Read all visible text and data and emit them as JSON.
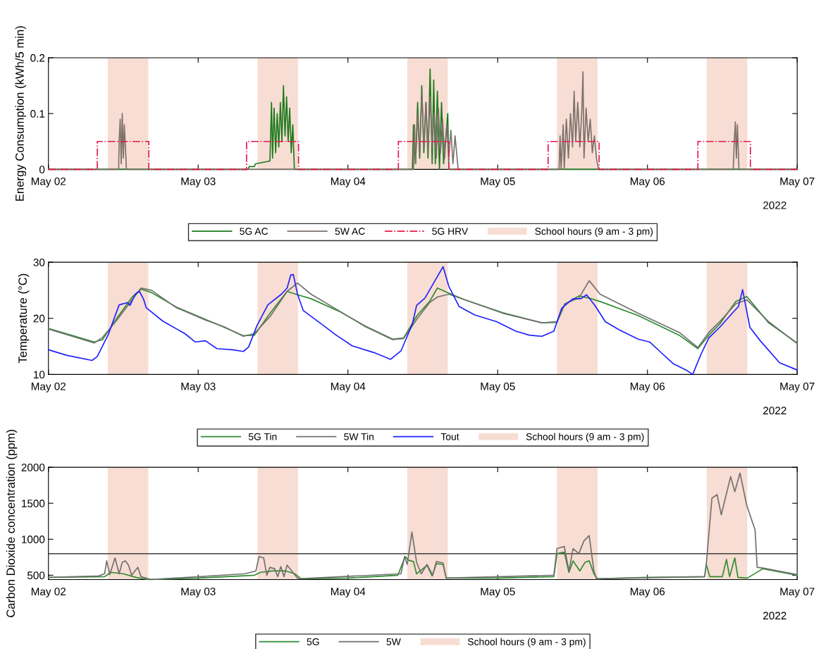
{
  "chart_data": [
    {
      "type": "line",
      "ylabel": "Energy Consumption (kWh/5 min)",
      "annotations": [
        "2022"
      ],
      "legend": "bottom",
      "xlim": [
        "2022-05-02",
        "2022-05-07"
      ],
      "xticks": [
        {
          "value": "2022-05-02",
          "label": "May 02"
        },
        {
          "value": "2022-05-03",
          "label": "May 03"
        },
        {
          "value": "2022-05-04",
          "label": "May 04"
        },
        {
          "value": "2022-05-05",
          "label": "May 05"
        },
        {
          "value": "2022-05-06",
          "label": "May 06"
        },
        {
          "value": "2022-05-07",
          "label": "May 07"
        }
      ],
      "ylim": [
        0,
        0.2
      ],
      "yticks": [
        0,
        0.1,
        0.2
      ],
      "series": [
        {
          "name": "5G AC",
          "color": "#1e7a1e",
          "x": [
            "2022-05-02T00:00",
            "2022-05-03T08:00",
            "2022-05-03T08:10",
            "2022-05-03T09:00",
            "2022-05-03T09:10",
            "2022-05-03T11:30",
            "2022-05-03T11:45",
            "2022-05-03T11:55",
            "2022-05-03T12:10",
            "2022-05-03T12:25",
            "2022-05-03T12:40",
            "2022-05-03T12:55",
            "2022-05-03T13:10",
            "2022-05-03T13:25",
            "2022-05-03T13:40",
            "2022-05-03T13:55",
            "2022-05-03T14:10",
            "2022-05-03T14:25",
            "2022-05-03T14:40",
            "2022-05-03T14:55",
            "2022-05-03T15:10",
            "2022-05-03T15:25",
            "2022-05-04T10:20",
            "2022-05-04T10:30",
            "2022-05-04T10:50",
            "2022-05-04T11:10",
            "2022-05-04T11:30",
            "2022-05-04T11:50",
            "2022-05-04T12:10",
            "2022-05-04T12:30",
            "2022-05-04T12:50",
            "2022-05-04T13:10",
            "2022-05-04T13:30",
            "2022-05-04T13:45",
            "2022-05-04T14:00",
            "2022-05-04T14:20",
            "2022-05-04T14:40",
            "2022-05-04T15:00",
            "2022-05-04T15:20",
            "2022-05-04T16:00",
            "2022-05-04T16:10",
            "2022-05-07T00:00"
          ],
          "values": [
            0,
            0,
            0.005,
            0.005,
            0.01,
            0.015,
            0.12,
            0.02,
            0.11,
            0.03,
            0.1,
            0.04,
            0.12,
            0.05,
            0.15,
            0.06,
            0.13,
            0.05,
            0.11,
            0.03,
            0.08,
            0,
            0,
            0.08,
            0.01,
            0.12,
            0.02,
            0.15,
            0.03,
            0.12,
            0.02,
            0.18,
            0.01,
            0.16,
            0.01,
            0.14,
            0,
            0.12,
            0.01,
            0.1,
            0,
            0
          ]
        },
        {
          "name": "5W AC",
          "color": "#7d716b",
          "x": [
            "2022-05-02T00:00",
            "2022-05-02T11:15",
            "2022-05-02T11:20",
            "2022-05-02T11:30",
            "2022-05-02T11:40",
            "2022-05-02T11:50",
            "2022-05-02T12:00",
            "2022-05-02T12:10",
            "2022-05-02T12:30",
            "2022-05-04T10:30",
            "2022-05-04T10:40",
            "2022-05-04T10:50",
            "2022-05-04T11:10",
            "2022-05-04T11:30",
            "2022-05-04T11:50",
            "2022-05-04T12:10",
            "2022-05-04T12:30",
            "2022-05-04T12:50",
            "2022-05-04T13:10",
            "2022-05-04T13:30",
            "2022-05-04T13:50",
            "2022-05-04T14:10",
            "2022-05-04T14:30",
            "2022-05-04T14:50",
            "2022-05-04T15:10",
            "2022-05-04T15:30",
            "2022-05-04T15:50",
            "2022-05-04T16:10",
            "2022-05-04T16:30",
            "2022-05-04T16:50",
            "2022-05-04T17:10",
            "2022-05-04T17:40",
            "2022-05-05T09:50",
            "2022-05-05T10:00",
            "2022-05-05T10:10",
            "2022-05-05T10:30",
            "2022-05-05T10:40",
            "2022-05-05T11:00",
            "2022-05-05T11:20",
            "2022-05-05T11:40",
            "2022-05-05T12:00",
            "2022-05-05T12:15",
            "2022-05-05T12:30",
            "2022-05-05T12:50",
            "2022-05-05T13:10",
            "2022-05-05T13:30",
            "2022-05-05T13:40",
            "2022-05-05T13:50",
            "2022-05-05T14:10",
            "2022-05-05T14:30",
            "2022-05-05T14:50",
            "2022-05-05T15:10",
            "2022-05-05T15:30",
            "2022-05-05T15:50",
            "2022-05-05T16:10",
            "2022-05-06T13:45",
            "2022-05-06T13:55",
            "2022-05-06T14:05",
            "2022-05-06T14:15",
            "2022-05-06T14:25",
            "2022-05-06T14:40",
            "2022-05-07T00:00"
          ],
          "values": [
            0,
            0,
            0.05,
            0.09,
            0.01,
            0.1,
            0.02,
            0.08,
            0,
            0,
            0.08,
            0.01,
            0.1,
            0.03,
            0.14,
            0.04,
            0.12,
            0.03,
            0.13,
            0.04,
            0.1,
            0.02,
            0.11,
            0.03,
            0.09,
            0.02,
            0.08,
            0.02,
            0.07,
            0.01,
            0.06,
            0,
            0,
            0.06,
            0,
            0.08,
            0,
            0.09,
            0.02,
            0.1,
            0.04,
            0.14,
            0.05,
            0.12,
            0.04,
            0.11,
            0.175,
            0.02,
            0.11,
            0.05,
            0.09,
            0.03,
            0.06,
            0.02,
            0,
            0,
            0.05,
            0.085,
            0.02,
            0.08,
            0,
            0
          ]
        },
        {
          "name": "5G HRV",
          "color": "#e8174a",
          "type": "step",
          "line_style": "dashdot",
          "x": [
            "2022-05-02T00:00",
            "2022-05-02T07:50",
            "2022-05-02T16:05",
            "2022-05-03T07:45",
            "2022-05-03T16:05",
            "2022-05-04T08:05",
            "2022-05-04T16:10",
            "2022-05-05T08:05",
            "2022-05-05T16:15",
            "2022-05-06T08:05",
            "2022-05-06T16:30",
            "2022-05-07T00:00"
          ],
          "values": [
            0,
            0.05,
            0,
            0.05,
            0,
            0.05,
            0,
            0.05,
            0,
            0.05,
            0,
            0
          ]
        }
      ],
      "bands": [
        {
          "axis": "x",
          "from": "2022-05-02T09:30",
          "to": "2022-05-02T16:00",
          "label": "School hours (9 am - 3 pm)",
          "color": "#f7ddd3"
        },
        {
          "axis": "x",
          "from": "2022-05-03T09:30",
          "to": "2022-05-03T16:00",
          "color": "#f7ddd3"
        },
        {
          "axis": "x",
          "from": "2022-05-04T09:30",
          "to": "2022-05-04T16:00",
          "color": "#f7ddd3"
        },
        {
          "axis": "x",
          "from": "2022-05-05T09:30",
          "to": "2022-05-05T16:00",
          "color": "#f7ddd3"
        },
        {
          "axis": "x",
          "from": "2022-05-06T09:30",
          "to": "2022-05-06T16:00",
          "color": "#f7ddd3"
        }
      ]
    },
    {
      "type": "line",
      "ylabel": "Temperature (°C)",
      "annotations": [
        "2022"
      ],
      "legend": "bottom",
      "xlim": [
        "2022-05-02",
        "2022-05-07"
      ],
      "xticks": [
        {
          "value": "2022-05-02",
          "label": "May 02"
        },
        {
          "value": "2022-05-03",
          "label": "May 03"
        },
        {
          "value": "2022-05-04",
          "label": "May 04"
        },
        {
          "value": "2022-05-05",
          "label": "May 05"
        },
        {
          "value": "2022-05-06",
          "label": "May 06"
        },
        {
          "value": "2022-05-07",
          "label": "May 07"
        }
      ],
      "ylim": [
        10,
        30
      ],
      "yticks": [
        10,
        20,
        30
      ],
      "series": [
        {
          "name": "5G Tin",
          "color": "#2e8b2e",
          "x": [
            "2022-05-02T00:00",
            "2022-05-02T07:20",
            "2022-05-02T08:40",
            "2022-05-02T10:50",
            "2022-05-02T13:25",
            "2022-05-02T14:50",
            "2022-05-02T16:30",
            "2022-05-02T20:30",
            "2022-05-03T01:10",
            "2022-05-03T04:10",
            "2022-05-03T07:15",
            "2022-05-03T09:00",
            "2022-05-03T11:35",
            "2022-05-03T14:15",
            "2022-05-03T15:55",
            "2022-05-03T18:05",
            "2022-05-03T22:30",
            "2022-05-04T02:50",
            "2022-05-04T07:10",
            "2022-05-04T08:55",
            "2022-05-04T11:05",
            "2022-05-04T13:05",
            "2022-05-04T14:20",
            "2022-05-04T16:10",
            "2022-05-04T18:45",
            "2022-05-05T00:50",
            "2022-05-05T07:05",
            "2022-05-05T09:30",
            "2022-05-05T10:45",
            "2022-05-05T13:00",
            "2022-05-05T14:40",
            "2022-05-05T16:25",
            "2022-05-05T22:30",
            "2022-05-06T05:05",
            "2022-05-06T08:05",
            "2022-05-06T09:50",
            "2022-05-06T11:35",
            "2022-05-06T14:10",
            "2022-05-06T15:55",
            "2022-05-06T19:25",
            "2022-05-07T00:00"
          ],
          "values": [
            18.2,
            15.8,
            16.2,
            19.8,
            23.8,
            25.2,
            24.6,
            22.0,
            19.8,
            18.4,
            16.9,
            17.0,
            21.0,
            24.8,
            24.2,
            23.5,
            21.3,
            18.6,
            16.3,
            16.5,
            20.5,
            23.0,
            25.4,
            24.5,
            23.3,
            21.0,
            19.2,
            19.3,
            22.5,
            24.0,
            23.6,
            23.0,
            20.5,
            17.0,
            14.6,
            17.0,
            19.0,
            23.0,
            23.9,
            19.2,
            15.6
          ]
        },
        {
          "name": "5W Tin",
          "color": "#707070",
          "x": [
            "2022-05-02T00:00",
            "2022-05-02T07:20",
            "2022-05-02T08:40",
            "2022-05-02T10:50",
            "2022-05-02T13:25",
            "2022-05-02T14:50",
            "2022-05-02T16:30",
            "2022-05-02T20:30",
            "2022-05-03T01:10",
            "2022-05-03T04:10",
            "2022-05-03T07:15",
            "2022-05-03T09:00",
            "2022-05-03T11:35",
            "2022-05-03T14:15",
            "2022-05-03T15:55",
            "2022-05-03T18:05",
            "2022-05-03T22:30",
            "2022-05-04T02:50",
            "2022-05-04T07:10",
            "2022-05-04T08:55",
            "2022-05-04T11:05",
            "2022-05-04T13:05",
            "2022-05-04T14:20",
            "2022-05-04T16:10",
            "2022-05-04T18:45",
            "2022-05-05T00:50",
            "2022-05-05T07:05",
            "2022-05-05T09:30",
            "2022-05-05T10:45",
            "2022-05-05T13:00",
            "2022-05-05T14:40",
            "2022-05-05T16:25",
            "2022-05-05T22:30",
            "2022-05-06T05:05",
            "2022-05-06T08:05",
            "2022-05-06T09:50",
            "2022-05-06T11:35",
            "2022-05-06T14:10",
            "2022-05-06T15:55",
            "2022-05-06T19:25",
            "2022-05-07T00:00"
          ],
          "values": [
            18.1,
            15.6,
            16.6,
            19.5,
            23.3,
            25.4,
            25.0,
            21.9,
            19.7,
            18.5,
            16.8,
            17.3,
            20.4,
            24.8,
            26.3,
            24.3,
            21.4,
            18.5,
            16.2,
            16.4,
            19.9,
            22.8,
            23.8,
            24.3,
            23.3,
            20.9,
            19.2,
            19.4,
            22.6,
            23.6,
            26.7,
            24.3,
            20.9,
            17.5,
            14.8,
            17.5,
            19.4,
            22.6,
            23.3,
            19.4,
            15.5
          ]
        },
        {
          "name": "Tout",
          "color": "#2020ff",
          "x": [
            "2022-05-02T00:00",
            "2022-05-02T03:00",
            "2022-05-02T07:00",
            "2022-05-02T07:50",
            "2022-05-02T09:35",
            "2022-05-02T11:20",
            "2022-05-02T12:40",
            "2022-05-02T13:05",
            "2022-05-02T13:55",
            "2022-05-02T14:35",
            "2022-05-02T15:15",
            "2022-05-02T15:40",
            "2022-05-02T18:20",
            "2022-05-02T21:50",
            "2022-05-02T23:30",
            "2022-05-03T01:10",
            "2022-05-03T03:00",
            "2022-05-03T05:30",
            "2022-05-03T07:15",
            "2022-05-03T08:05",
            "2022-05-03T09:25",
            "2022-05-03T11:10",
            "2022-05-03T13:20",
            "2022-05-03T14:15",
            "2022-05-03T14:50",
            "2022-05-03T15:15",
            "2022-05-03T15:55",
            "2022-05-03T16:50",
            "2022-05-03T20:20",
            "2022-05-03T22:00",
            "2022-05-04T00:40",
            "2022-05-04T04:10",
            "2022-05-04T06:50",
            "2022-05-04T08:30",
            "2022-05-04T10:20",
            "2022-05-04T11:00",
            "2022-05-04T12:20",
            "2022-05-04T15:15",
            "2022-05-04T16:10",
            "2022-05-04T17:50",
            "2022-05-04T20:20",
            "2022-05-04T23:50",
            "2022-05-05T02:55",
            "2022-05-05T05:05",
            "2022-05-05T07:05",
            "2022-05-05T09:00",
            "2022-05-05T10:15",
            "2022-05-05T12:05",
            "2022-05-05T13:20",
            "2022-05-05T14:15",
            "2022-05-05T15:35",
            "2022-05-05T17:15",
            "2022-05-05T19:25",
            "2022-05-05T22:30",
            "2022-05-06T00:20",
            "2022-05-06T02:00",
            "2022-05-06T04:10",
            "2022-05-06T06:20",
            "2022-05-06T07:15",
            "2022-05-06T08:35",
            "2022-05-06T09:50",
            "2022-05-06T11:35",
            "2022-05-06T13:45",
            "2022-05-06T14:35",
            "2022-05-06T15:15",
            "2022-05-06T16:25",
            "2022-05-06T18:05",
            "2022-05-06T21:10",
            "2022-05-07T00:00"
          ],
          "values": [
            14.4,
            13.4,
            12.5,
            13.2,
            17.1,
            22.4,
            22.8,
            22.3,
            24.3,
            24.8,
            23.4,
            21.9,
            19.5,
            17.3,
            15.8,
            16.0,
            14.6,
            14.4,
            14.1,
            14.9,
            18.7,
            22.4,
            24.3,
            25.4,
            27.7,
            27.8,
            24.3,
            21.4,
            18.5,
            17.1,
            15.1,
            13.9,
            12.7,
            14.2,
            19.0,
            22.3,
            23.6,
            29.2,
            25.7,
            22.1,
            20.6,
            19.4,
            17.7,
            17.0,
            16.8,
            17.7,
            21.8,
            23.5,
            23.5,
            24.2,
            22.3,
            19.4,
            18.0,
            16.3,
            15.8,
            14.1,
            11.9,
            10.7,
            10.0,
            13.6,
            16.5,
            18.4,
            21.1,
            22.1,
            25.1,
            18.4,
            16.0,
            12.1,
            10.8
          ]
        }
      ],
      "bands": [
        {
          "axis": "x",
          "from": "2022-05-02T09:30",
          "to": "2022-05-02T16:00",
          "label": "School hours (9 am - 3 pm)",
          "color": "#f7ddd3"
        },
        {
          "axis": "x",
          "from": "2022-05-03T09:30",
          "to": "2022-05-03T16:00",
          "color": "#f7ddd3"
        },
        {
          "axis": "x",
          "from": "2022-05-04T09:30",
          "to": "2022-05-04T16:00",
          "color": "#f7ddd3"
        },
        {
          "axis": "x",
          "from": "2022-05-05T09:30",
          "to": "2022-05-05T16:00",
          "color": "#f7ddd3"
        },
        {
          "axis": "x",
          "from": "2022-05-06T09:30",
          "to": "2022-05-06T16:00",
          "color": "#f7ddd3"
        }
      ]
    },
    {
      "type": "line",
      "ylabel": "Carbon Dioxide concentration (ppm)",
      "annotations": [
        "2022"
      ],
      "legend": "bottom",
      "xlim": [
        "2022-05-02",
        "2022-05-07"
      ],
      "xticks": [
        {
          "value": "2022-05-02",
          "label": "May 02"
        },
        {
          "value": "2022-05-03",
          "label": "May 03"
        },
        {
          "value": "2022-05-04",
          "label": "May 04"
        },
        {
          "value": "2022-05-05",
          "label": "May 05"
        },
        {
          "value": "2022-05-06",
          "label": "May 06"
        },
        {
          "value": "2022-05-07",
          "label": "May 07"
        }
      ],
      "ylim": [
        440,
        2000
      ],
      "yticks": [
        500,
        1000,
        1500,
        2000
      ],
      "series": [
        {
          "name": "5G",
          "color": "#2e8b2e",
          "x": [
            "2022-05-02T00:00",
            "2022-05-02T09:00",
            "2022-05-02T10:00",
            "2022-05-02T12:00",
            "2022-05-02T14:00",
            "2022-05-02T16:00",
            "2022-05-03T00:00",
            "2022-05-03T09:00",
            "2022-05-03T10:00",
            "2022-05-03T12:00",
            "2022-05-03T14:00",
            "2022-05-03T15:30",
            "2022-05-03T16:30",
            "2022-05-04T00:00",
            "2022-05-04T08:00",
            "2022-05-04T09:10",
            "2022-05-04T09:40",
            "2022-05-04T10:30",
            "2022-05-04T11:00",
            "2022-05-04T12:40",
            "2022-05-04T13:30",
            "2022-05-04T14:10",
            "2022-05-04T15:15",
            "2022-05-04T15:45",
            "2022-05-05T00:00",
            "2022-05-05T09:00",
            "2022-05-05T09:30",
            "2022-05-05T10:40",
            "2022-05-05T11:25",
            "2022-05-05T12:05",
            "2022-05-05T13:10",
            "2022-05-05T14:00",
            "2022-05-05T14:40",
            "2022-05-05T15:25",
            "2022-05-05T16:00",
            "2022-05-06T00:00",
            "2022-05-06T09:10",
            "2022-05-06T09:25",
            "2022-05-06T10:00",
            "2022-05-06T12:00",
            "2022-05-06T12:40",
            "2022-05-06T13:10",
            "2022-05-06T14:00",
            "2022-05-06T14:30",
            "2022-05-06T16:00",
            "2022-05-06T18:30",
            "2022-05-07T00:00"
          ],
          "values": [
            470,
            480,
            540,
            520,
            470,
            440,
            460,
            500,
            540,
            560,
            560,
            520,
            450,
            460,
            500,
            760,
            710,
            690,
            520,
            640,
            490,
            660,
            650,
            460,
            460,
            480,
            800,
            820,
            540,
            700,
            560,
            680,
            700,
            520,
            450,
            470,
            480,
            650,
            480,
            480,
            720,
            480,
            740,
            470,
            460,
            590,
            500
          ]
        },
        {
          "name": "5W",
          "color": "#707070",
          "x": [
            "2022-05-02T00:00",
            "2022-05-02T08:00",
            "2022-05-02T09:00",
            "2022-05-02T09:20",
            "2022-05-02T09:50",
            "2022-05-02T10:40",
            "2022-05-02T11:20",
            "2022-05-02T11:50",
            "2022-05-02T12:20",
            "2022-05-02T12:50",
            "2022-05-02T13:20",
            "2022-05-02T14:20",
            "2022-05-02T14:50",
            "2022-05-02T16:30",
            "2022-05-03T07:30",
            "2022-05-03T09:15",
            "2022-05-03T09:45",
            "2022-05-03T10:30",
            "2022-05-03T11:00",
            "2022-05-03T11:30",
            "2022-05-03T12:15",
            "2022-05-03T12:45",
            "2022-05-03T13:15",
            "2022-05-03T13:45",
            "2022-05-03T14:15",
            "2022-05-03T15:00",
            "2022-05-03T16:00",
            "2022-05-04T08:30",
            "2022-05-04T09:05",
            "2022-05-04T09:30",
            "2022-05-04T10:15",
            "2022-05-04T11:00",
            "2022-05-04T11:45",
            "2022-05-04T12:40",
            "2022-05-04T13:35",
            "2022-05-04T14:10",
            "2022-05-04T15:15",
            "2022-05-04T15:45",
            "2022-05-05T09:00",
            "2022-05-05T09:30",
            "2022-05-05T10:40",
            "2022-05-05T11:25",
            "2022-05-05T12:05",
            "2022-05-05T13:00",
            "2022-05-05T13:50",
            "2022-05-05T14:40",
            "2022-05-05T15:25",
            "2022-05-05T15:50",
            "2022-05-06T09:10",
            "2022-05-06T09:25",
            "2022-05-06T10:20",
            "2022-05-06T11:10",
            "2022-05-06T11:50",
            "2022-05-06T13:20",
            "2022-05-06T14:00",
            "2022-05-06T14:50",
            "2022-05-06T15:55",
            "2022-05-06T17:15",
            "2022-05-06T17:35",
            "2022-05-06T18:30",
            "2022-05-07T00:00"
          ],
          "values": [
            470,
            490,
            520,
            700,
            510,
            740,
            520,
            680,
            700,
            640,
            500,
            610,
            480,
            440,
            520,
            560,
            760,
            740,
            500,
            610,
            590,
            480,
            620,
            480,
            640,
            560,
            450,
            520,
            760,
            650,
            1100,
            680,
            520,
            650,
            500,
            690,
            670,
            460,
            500,
            870,
            900,
            560,
            870,
            800,
            980,
            1050,
            560,
            450,
            480,
            640,
            1570,
            1620,
            1340,
            1870,
            1660,
            1920,
            1470,
            1130,
            610,
            600,
            510
          ]
        }
      ],
      "ref_lines": [
        {
          "axis": "y",
          "value": 800,
          "color": "#404040"
        }
      ],
      "bands": [
        {
          "axis": "x",
          "from": "2022-05-02T09:30",
          "to": "2022-05-02T16:00",
          "label": "School hours (9 am - 3 pm)",
          "color": "#f7ddd3"
        },
        {
          "axis": "x",
          "from": "2022-05-03T09:30",
          "to": "2022-05-03T16:00",
          "color": "#f7ddd3"
        },
        {
          "axis": "x",
          "from": "2022-05-04T09:30",
          "to": "2022-05-04T16:00",
          "color": "#f7ddd3"
        },
        {
          "axis": "x",
          "from": "2022-05-05T09:30",
          "to": "2022-05-05T16:00",
          "color": "#f7ddd3"
        },
        {
          "axis": "x",
          "from": "2022-05-06T09:30",
          "to": "2022-05-06T16:00",
          "color": "#f7ddd3"
        }
      ]
    }
  ]
}
